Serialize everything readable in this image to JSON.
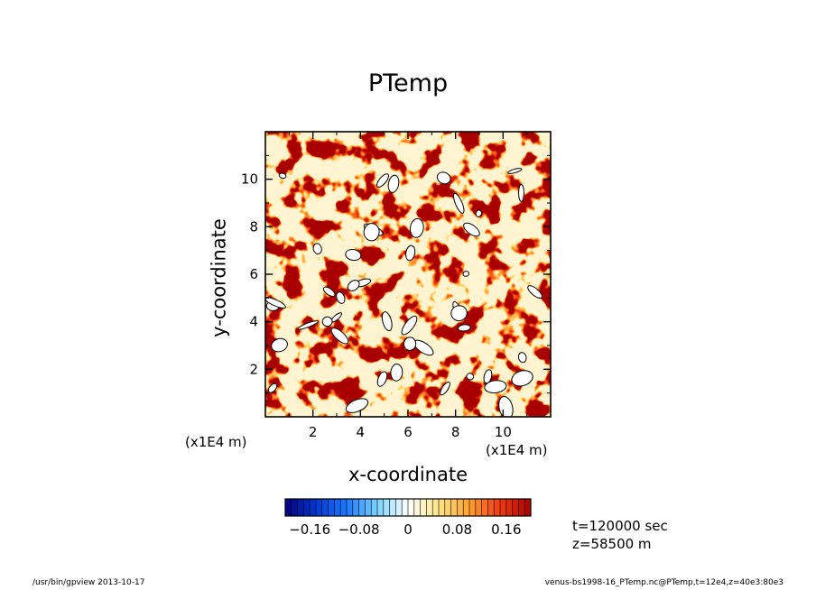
{
  "chart_data": {
    "type": "heatmap",
    "title": "PTemp",
    "xlabel": "x-coordinate",
    "ylabel": "y-coordinate",
    "x_unit_label": "(x1E4 m)",
    "y_unit_label": "(x1E4 m)",
    "xlim": [
      0,
      12
    ],
    "ylim": [
      0,
      12
    ],
    "x_ticks": [
      2,
      4,
      6,
      8,
      10
    ],
    "y_ticks": [
      2,
      4,
      6,
      8,
      10
    ],
    "color_range": [
      -0.2,
      0.2
    ],
    "colorbar_ticks": [
      {
        "value": -0.16,
        "label": "-0.16"
      },
      {
        "value": -0.08,
        "label": "-0.08"
      },
      {
        "value": 0,
        "label": "0"
      },
      {
        "value": 0.08,
        "label": "0.08"
      },
      {
        "value": 0.16,
        "label": "0.16"
      }
    ],
    "colormap": [
      "#00007f",
      "#0038d0",
      "#1e78ff",
      "#7ad4ff",
      "#ffffff",
      "#ffe58a",
      "#ffa030",
      "#f03a12",
      "#a80000"
    ],
    "out_of_range_color": "#ffffff"
  },
  "annotations": {
    "time": "t=120000 sec",
    "z": "z=58500 m"
  },
  "footer": {
    "left": "/usr/bin/gpview  2013-10-17",
    "right": "venus-bs1998-16_PTemp.nc@PTemp,t=12e4,z=40e3:80e3"
  }
}
